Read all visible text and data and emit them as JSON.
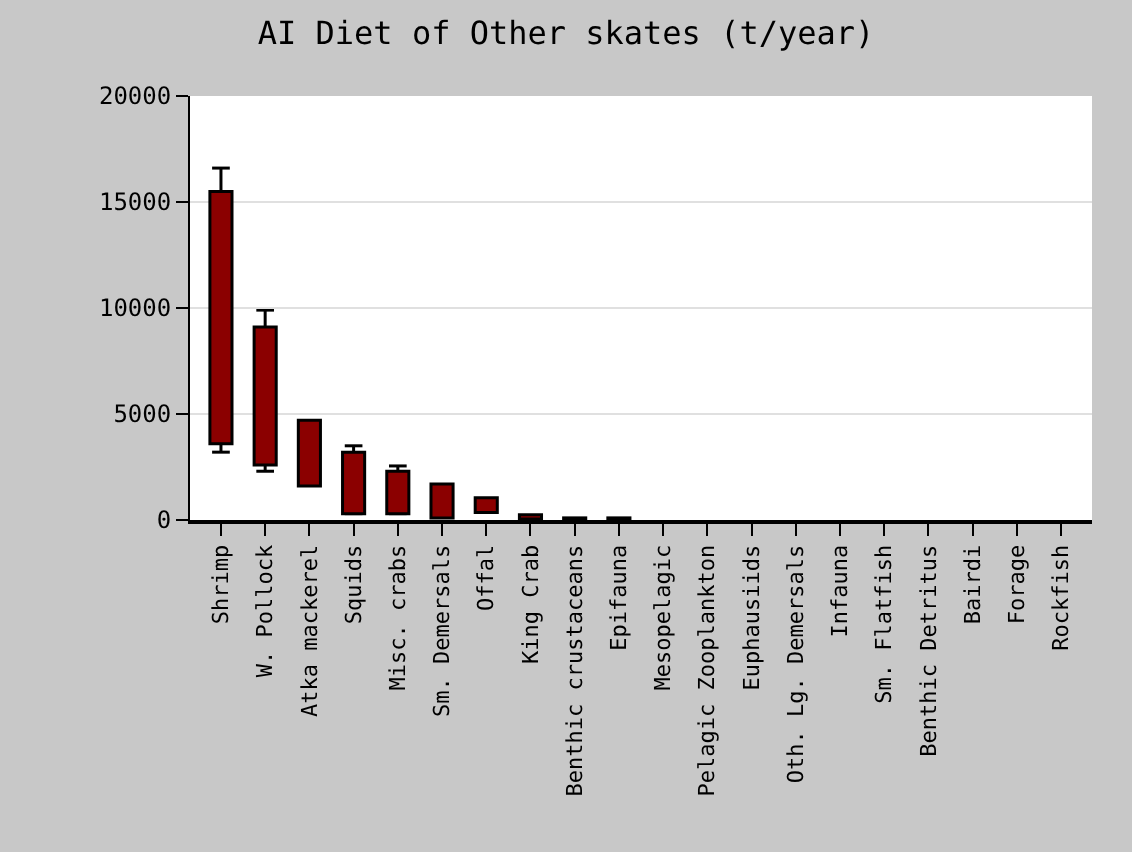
{
  "chart_data": {
    "type": "bar",
    "title": "AI Diet of Other skates (t/year)",
    "categories": [
      "Shrimp",
      "W. Pollock",
      "Atka mackerel",
      "Squids",
      "Misc. crabs",
      "Sm. Demersals",
      "Offal",
      "King Crab",
      "Benthic crustaceans",
      "Epifauna",
      "Mesopelagic",
      "Pelagic Zooplankton",
      "Euphausiids",
      "Oth. Lg. Demersals",
      "Infauna",
      "Sm. Flatfish",
      "Benthic Detritus",
      "Bairdi",
      "Forage",
      "Rockfish"
    ],
    "base": [
      3600,
      2600,
      1600,
      300,
      300,
      100,
      350,
      50,
      0,
      0,
      null,
      null,
      null,
      null,
      null,
      null,
      null,
      null,
      null,
      null
    ],
    "values": [
      11900,
      6500,
      3100,
      2900,
      2000,
      1600,
      700,
      200,
      100,
      100,
      0,
      0,
      0,
      0,
      0,
      0,
      0,
      0,
      0,
      0
    ],
    "errors": [
      [
        3200,
        16600
      ],
      [
        2300,
        9900
      ],
      null,
      [
        300,
        3500
      ],
      [
        300,
        2550
      ],
      null,
      null,
      null,
      null,
      null,
      null,
      null,
      null,
      null,
      null,
      null,
      null,
      null,
      null,
      null
    ],
    "color": "#8b0000",
    "ylim": [
      0,
      20000
    ],
    "yticks": [
      0,
      5000,
      10000,
      15000,
      20000
    ],
    "grid": "y"
  }
}
